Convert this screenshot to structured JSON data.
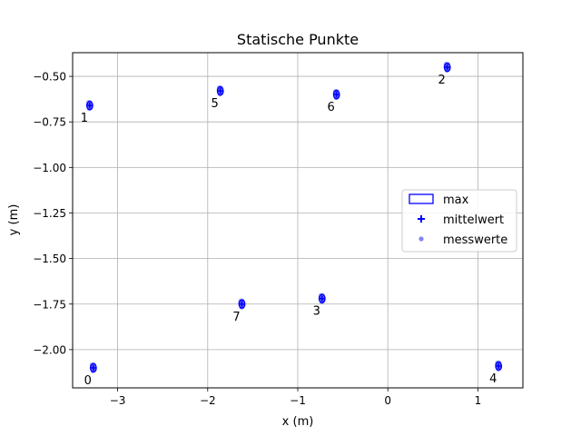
{
  "chart_data": {
    "type": "scatter",
    "title": "Statische Punkte",
    "xlabel": "x (m)",
    "ylabel": "y (m)",
    "xlim": [
      -3.5,
      1.5
    ],
    "ylim": [
      -2.21,
      -0.37
    ],
    "xticks": [
      -3,
      -2,
      -1,
      0,
      1
    ],
    "xtick_labels": [
      "−3",
      "−2",
      "−1",
      "0",
      "1"
    ],
    "yticks": [
      -0.5,
      -0.75,
      -1.0,
      -1.25,
      -1.5,
      -1.75,
      -2.0
    ],
    "ytick_labels": [
      "−0.50",
      "−0.75",
      "−1.00",
      "−1.25",
      "−1.50",
      "−1.75",
      "−2.00"
    ],
    "grid": true,
    "legend_position": "center-right",
    "legend": [
      "max",
      "mittelwert",
      "messwerte"
    ],
    "colors": {
      "max": "#0000ff",
      "mittelwert": "#0000ff",
      "messwerte": "#5a5af0"
    },
    "points": [
      {
        "label": "0",
        "x": -3.27,
        "y": -2.1
      },
      {
        "label": "1",
        "x": -3.31,
        "y": -0.66
      },
      {
        "label": "2",
        "x": 0.66,
        "y": -0.45
      },
      {
        "label": "3",
        "x": -0.73,
        "y": -1.72
      },
      {
        "label": "4",
        "x": 1.23,
        "y": -2.09
      },
      {
        "label": "5",
        "x": -1.86,
        "y": -0.58
      },
      {
        "label": "6",
        "x": -0.57,
        "y": -0.6
      },
      {
        "label": "7",
        "x": -1.62,
        "y": -1.75
      }
    ]
  }
}
